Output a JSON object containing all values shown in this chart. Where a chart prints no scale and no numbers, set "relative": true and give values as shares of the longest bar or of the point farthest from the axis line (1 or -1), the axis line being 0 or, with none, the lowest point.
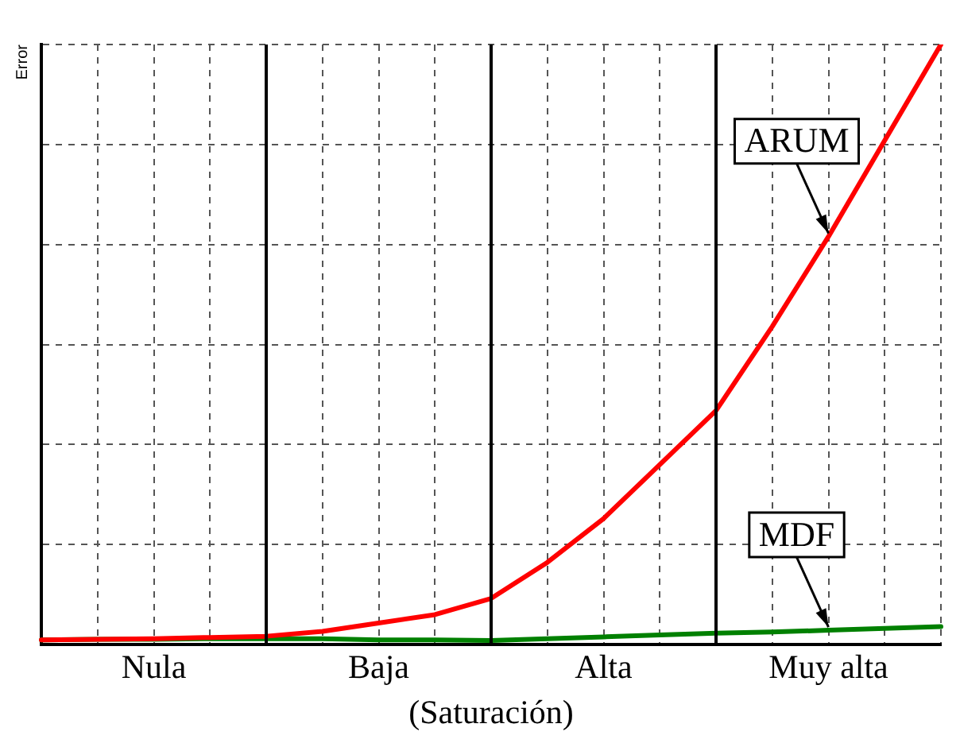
{
  "chart_data": {
    "type": "line",
    "relative": true,
    "xlabel": "(Saturación)",
    "ylabel": "Error",
    "categories": [
      null,
      null,
      "Nula",
      null,
      null,
      null,
      "Baja",
      null,
      null,
      null,
      "Alta",
      null,
      null,
      null,
      "Muy alta",
      null,
      null
    ],
    "series": [
      {
        "name": "ARUM",
        "color": "#ff0000",
        "values": [
          0.008,
          0.009,
          0.01,
          0.012,
          0.014,
          0.022,
          0.036,
          0.05,
          0.077,
          0.137,
          0.21,
          0.3,
          0.39,
          0.53,
          0.68,
          0.84,
          1
        ]
      },
      {
        "name": "MDF",
        "color": "#008000",
        "values": [
          0.008,
          0.009,
          0.009,
          0.01,
          0.01,
          0.01,
          0.008,
          0.008,
          0.007,
          0.01,
          0.013,
          0.016,
          0.019,
          0.021,
          0.024,
          0.027,
          0.03
        ]
      }
    ],
    "grid": true,
    "legend": false,
    "marker": "none",
    "line_style": "solid"
  }
}
